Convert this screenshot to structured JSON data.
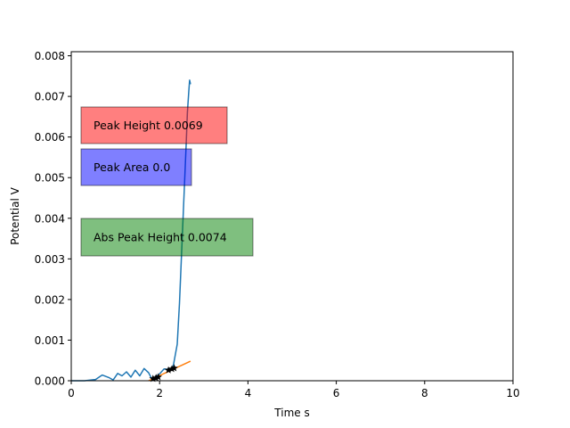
{
  "chart_data": {
    "type": "line",
    "title": "",
    "xlabel": "Time s",
    "ylabel": "Potential V",
    "xlim": [
      0,
      10
    ],
    "ylim": [
      0,
      0.0081
    ],
    "xticks": [
      0,
      2,
      4,
      6,
      8,
      10
    ],
    "yticks": [
      0.0,
      0.001,
      0.002,
      0.003,
      0.004,
      0.005,
      0.006,
      0.007,
      0.008
    ],
    "xtick_labels": [
      "0",
      "2",
      "4",
      "6",
      "8",
      "10"
    ],
    "ytick_labels": [
      "0.000",
      "0.001",
      "0.002",
      "0.003",
      "0.004",
      "0.005",
      "0.006",
      "0.007",
      "0.008"
    ],
    "grid": false,
    "series": [
      {
        "color": "#1f77b4",
        "x": [
          0.0,
          0.3,
          0.55,
          0.7,
          0.85,
          0.95,
          1.05,
          1.15,
          1.25,
          1.35,
          1.45,
          1.55,
          1.65,
          1.75,
          1.82,
          1.9,
          2.0,
          2.1,
          2.2,
          2.3,
          2.4,
          2.45,
          2.5,
          2.55,
          2.6,
          2.63,
          2.66,
          2.68,
          2.7
        ],
        "y": [
          0.0,
          0.0,
          3e-05,
          0.00014,
          8e-05,
          2e-05,
          0.00018,
          0.00012,
          0.00022,
          9e-05,
          0.00026,
          0.00012,
          0.0003,
          0.0002,
          5e-05,
          9e-05,
          0.00017,
          0.00029,
          0.00028,
          0.00031,
          0.0009,
          0.0019,
          0.0032,
          0.0045,
          0.0058,
          0.0066,
          0.0071,
          0.0074,
          0.0073
        ]
      },
      {
        "color": "#ff7f0e",
        "x": [
          1.75,
          2.7
        ],
        "y": [
          0.0,
          0.00048
        ]
      }
    ],
    "markers": {
      "color": "#000000",
      "symbol": "star",
      "x": [
        1.85,
        1.92,
        1.97,
        2.2,
        2.28,
        2.33
      ],
      "y": [
        5e-05,
        7e-05,
        9e-05,
        0.00026,
        0.00029,
        0.00031
      ]
    },
    "annotations": [
      {
        "text": "Peak Height 0.0069",
        "color": "#ff0000"
      },
      {
        "text": "Peak Area 0.0",
        "color": "#0000ff"
      },
      {
        "text": "Abs Peak Height 0.0074",
        "color": "#008000"
      }
    ]
  }
}
